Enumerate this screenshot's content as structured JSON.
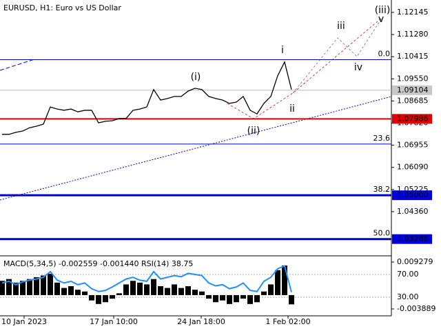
{
  "chart_data": {
    "type": "line",
    "title": "EURUSD, H1:  Euro vs US Dollar",
    "color": "#000000",
    "x": [
      0,
      1,
      2,
      3,
      4,
      5,
      6,
      7,
      8,
      9,
      10,
      11,
      12,
      13,
      14,
      15,
      16,
      17,
      18,
      19,
      20,
      21,
      22,
      23,
      24,
      25,
      26,
      27,
      28,
      29,
      30,
      31,
      32,
      33,
      34,
      35,
      36,
      37,
      38,
      39,
      40,
      41,
      42
    ],
    "values": [
      1.0738,
      1.0738,
      1.0746,
      1.0751,
      1.0764,
      1.077,
      1.0778,
      1.0845,
      1.0837,
      1.0832,
      1.0837,
      1.0826,
      1.0832,
      1.0832,
      1.0783,
      1.0789,
      1.0791,
      1.08,
      1.08,
      1.0832,
      1.0837,
      1.0845,
      1.0913,
      1.0872,
      1.0878,
      1.0886,
      1.0886,
      1.0907,
      1.0918,
      1.0913,
      1.0886,
      1.0878,
      1.0872,
      1.0859,
      1.0864,
      1.0886,
      1.0832,
      1.0818,
      1.0859,
      1.0886,
      1.0967,
      1.1021,
      1.0913
    ],
    "xlim": [
      -0.3,
      56.5
    ],
    "xticks": [
      {
        "value": 3.2,
        "label": "10 Jan 2023"
      },
      {
        "value": 16.2,
        "label": "17 Jan 10:00"
      },
      {
        "value": 28.9,
        "label": "24 Jan 18:00"
      },
      {
        "value": 41.5,
        "label": "1 Feb 02:00"
      }
    ],
    "ylim": [
      1.0266,
      1.1263
    ],
    "yticks": [
      {
        "value": 1.12145,
        "label": "1.12145"
      },
      {
        "value": 1.1128,
        "label": "1.11280"
      },
      {
        "value": 1.10415,
        "label": "1.10415"
      },
      {
        "value": 1.0955,
        "label": "1.09550"
      },
      {
        "value": 1.08685,
        "label": "1.08685"
      },
      {
        "value": 1.0782,
        "label": "1.07820"
      },
      {
        "value": 1.06955,
        "label": "1.06955"
      },
      {
        "value": 1.0609,
        "label": "1.06090"
      },
      {
        "value": 1.05225,
        "label": "1.05225"
      },
      {
        "value": 1.0436,
        "label": "1.04360"
      }
    ],
    "current_price": {
      "value": 1.09104,
      "label": "1.09104"
    },
    "price_levels": [
      {
        "value": 1.07986,
        "label": "1.07986",
        "color": "#e00000"
      },
      {
        "value": 1.05,
        "label": "1.05000",
        "color": "#0000dd"
      },
      {
        "value": 1.03288,
        "label": "1.03288",
        "color": "#0000dd"
      }
    ],
    "fib_levels": [
      {
        "value": 1.103,
        "label": "0.0"
      },
      {
        "value": 1.07,
        "label": "23.6"
      },
      {
        "value": 1.05,
        "label": "38.2"
      },
      {
        "value": 1.03288,
        "label": "50.0"
      }
    ],
    "wave_labels": [
      {
        "text": "(i)",
        "color": "#d02020"
      },
      {
        "text": "(ii)",
        "color": "#d02020"
      },
      {
        "text": "(iii)",
        "color": "#d02020"
      },
      {
        "text": "i",
        "color": "#707070"
      },
      {
        "text": "ii",
        "color": "#707070"
      },
      {
        "text": "iii",
        "color": "#707070"
      },
      {
        "text": "iv",
        "color": "#707070"
      },
      {
        "text": "v",
        "color": "#707070"
      }
    ],
    "indicator": {
      "label": "MACD(5,34,5) -0.002559 -0.001440 RSI(14) 38.75",
      "macd_color": "#000000",
      "macd": [
        0.004,
        0.0045,
        0.0035,
        0.004,
        0.0045,
        0.005,
        0.0055,
        0.006,
        0.0035,
        0.002,
        0.0025,
        0.0015,
        0.001,
        -0.0015,
        -0.0025,
        -0.002,
        -0.001,
        0.0005,
        0.003,
        0.004,
        0.0035,
        0.003,
        0.0045,
        0.0025,
        0.002,
        0.003,
        0.002,
        0.0025,
        0.0015,
        0.001,
        -0.001,
        -0.002,
        -0.0015,
        -0.0025,
        -0.002,
        -0.001,
        -0.0025,
        -0.002,
        0.001,
        0.003,
        0.007,
        0.0083,
        -0.0026
      ],
      "macd_ylim": [
        -0.005825,
        0.01083
      ],
      "macd_ticks": [
        0.009279,
        -0.003889
      ],
      "rsi_color": "#1e90ff",
      "rsi": [
        55,
        58,
        52,
        57,
        60,
        62,
        65,
        75,
        60,
        55,
        58,
        52,
        55,
        45,
        40,
        42,
        48,
        55,
        62,
        65,
        60,
        58,
        75,
        62,
        65,
        68,
        66,
        72,
        70,
        68,
        55,
        50,
        52,
        45,
        48,
        55,
        42,
        40,
        58,
        65,
        80,
        85,
        38.75
      ],
      "rsi_ylim": [
        -2.7,
        101.5
      ],
      "rsi_ticks": [
        {
          "value": 70,
          "label": "70.00"
        },
        {
          "value": 30,
          "label": "30.00"
        }
      ]
    }
  }
}
